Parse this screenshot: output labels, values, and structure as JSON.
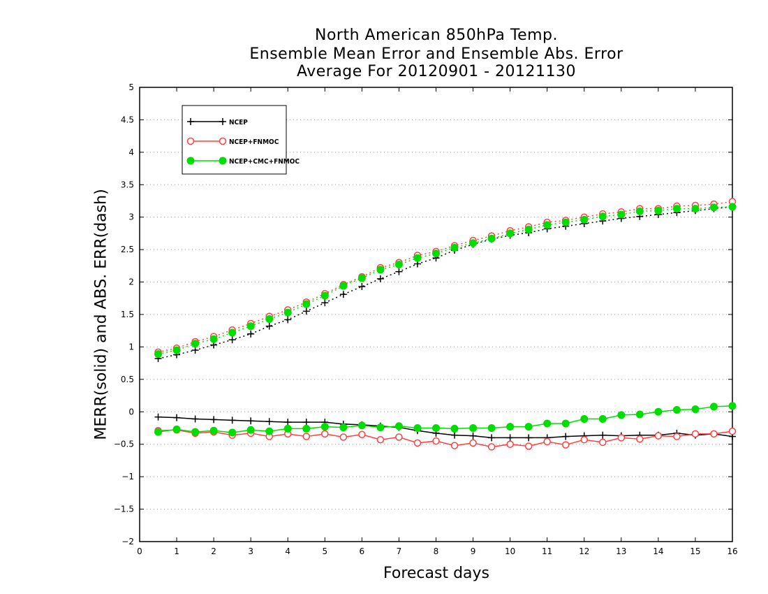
{
  "chart_data": {
    "type": "line",
    "title": [
      "North American 850hPa Temp.",
      "Ensemble Mean Error and Ensemble Abs. Error",
      "Average For 20120901 - 20121130"
    ],
    "xlabel": "Forecast days",
    "ylabel": "MERR(solid) and ABS. ERR(dash)",
    "xlim": [
      0,
      16
    ],
    "ylim": [
      -2,
      5
    ],
    "xticks": [
      0,
      1,
      2,
      3,
      4,
      5,
      6,
      7,
      8,
      9,
      10,
      11,
      12,
      13,
      14,
      15,
      16
    ],
    "yticks": [
      -2,
      -1.5,
      -1,
      -0.5,
      0,
      0.5,
      1,
      1.5,
      2,
      2.5,
      3,
      3.5,
      4,
      4.5,
      5
    ],
    "grid": "horizontal-dotted",
    "legend_position": "top-left",
    "x": [
      0.5,
      1,
      1.5,
      2,
      2.5,
      3,
      3.5,
      4,
      4.5,
      5,
      5.5,
      6,
      6.5,
      7,
      7.5,
      8,
      8.5,
      9,
      9.5,
      10,
      10.5,
      11,
      11.5,
      12,
      12.5,
      13,
      13.5,
      14,
      14.5,
      15,
      15.5,
      16
    ],
    "series": [
      {
        "name": "NCEP",
        "color": "#000000",
        "marker": "plus",
        "merr": [
          -0.08,
          -0.09,
          -0.11,
          -0.12,
          -0.13,
          -0.14,
          -0.15,
          -0.16,
          -0.16,
          -0.16,
          -0.19,
          -0.2,
          -0.22,
          -0.24,
          -0.29,
          -0.33,
          -0.36,
          -0.37,
          -0.4,
          -0.4,
          -0.4,
          -0.4,
          -0.38,
          -0.37,
          -0.36,
          -0.37,
          -0.36,
          -0.36,
          -0.33,
          -0.36,
          -0.34,
          -0.38
        ],
        "abs_err": [
          0.82,
          0.88,
          0.95,
          1.03,
          1.11,
          1.2,
          1.32,
          1.42,
          1.55,
          1.68,
          1.81,
          1.93,
          2.05,
          2.16,
          2.28,
          2.37,
          2.49,
          2.58,
          2.66,
          2.72,
          2.76,
          2.82,
          2.86,
          2.9,
          2.94,
          2.98,
          3.01,
          3.04,
          3.07,
          3.1,
          3.13,
          3.16
        ]
      },
      {
        "name": "NCEP+FNMOC",
        "color": "#ff4040",
        "marker": "open-circle",
        "merr": [
          -0.29,
          -0.28,
          -0.33,
          -0.31,
          -0.36,
          -0.33,
          -0.38,
          -0.34,
          -0.38,
          -0.34,
          -0.39,
          -0.35,
          -0.43,
          -0.39,
          -0.48,
          -0.45,
          -0.52,
          -0.48,
          -0.54,
          -0.5,
          -0.53,
          -0.46,
          -0.51,
          -0.43,
          -0.47,
          -0.4,
          -0.42,
          -0.37,
          -0.38,
          -0.34,
          -0.34,
          -0.3
        ],
        "abs_err": [
          0.92,
          0.98,
          1.08,
          1.16,
          1.26,
          1.36,
          1.47,
          1.57,
          1.69,
          1.82,
          1.96,
          2.08,
          2.22,
          2.3,
          2.41,
          2.47,
          2.56,
          2.64,
          2.71,
          2.79,
          2.85,
          2.92,
          2.95,
          3.0,
          3.05,
          3.08,
          3.13,
          3.13,
          3.17,
          3.18,
          3.2,
          3.24
        ]
      },
      {
        "name": "NCEP+CMC+FNMOC",
        "color": "#00dd00",
        "marker": "filled-circle",
        "merr": [
          -0.31,
          -0.27,
          -0.31,
          -0.29,
          -0.32,
          -0.28,
          -0.3,
          -0.26,
          -0.26,
          -0.23,
          -0.24,
          -0.21,
          -0.24,
          -0.22,
          -0.25,
          -0.25,
          -0.26,
          -0.25,
          -0.25,
          -0.23,
          -0.23,
          -0.18,
          -0.18,
          -0.11,
          -0.11,
          -0.05,
          -0.04,
          0.0,
          0.03,
          0.04,
          0.08,
          0.09
        ],
        "abs_err": [
          0.89,
          0.95,
          1.05,
          1.12,
          1.22,
          1.32,
          1.43,
          1.53,
          1.66,
          1.79,
          1.94,
          2.06,
          2.19,
          2.27,
          2.37,
          2.44,
          2.53,
          2.6,
          2.67,
          2.75,
          2.81,
          2.88,
          2.92,
          2.96,
          3.01,
          3.04,
          3.09,
          3.1,
          3.13,
          3.13,
          3.15,
          3.16
        ]
      }
    ]
  }
}
